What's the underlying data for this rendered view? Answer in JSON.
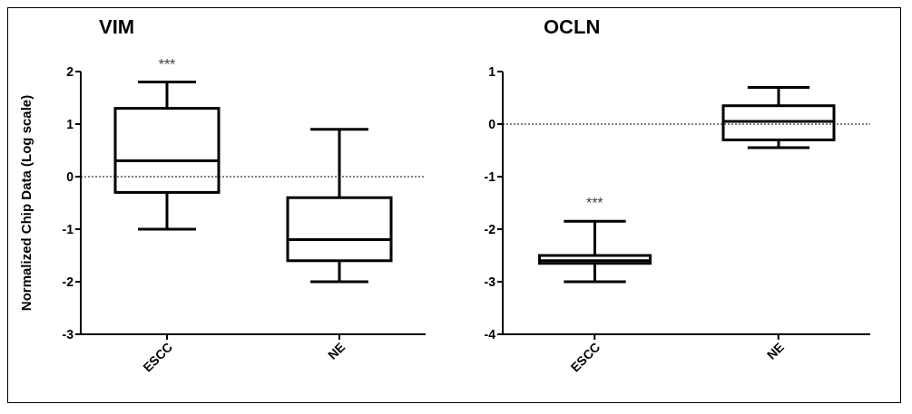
{
  "chart_data": [
    {
      "type": "box",
      "title": "VIM",
      "ylabel": "Normalized Chip Data (Log scale)",
      "categories": [
        "ESCC",
        "NE"
      ],
      "boxes": [
        {
          "low": -1,
          "q1": -0.3,
          "median": 0.3,
          "q3": 1.3,
          "high": 1.8
        },
        {
          "low": -2,
          "q1": -1.6,
          "median": -1.2,
          "q3": -0.4,
          "high": 0.9
        }
      ],
      "ylim": [
        -3,
        2
      ],
      "yticks": [
        -3,
        -2,
        -1,
        0,
        1,
        2
      ],
      "grid": false,
      "legend": false,
      "ref_lines": [
        {
          "axis": "y",
          "value": 0,
          "line_style": "dotted"
        }
      ],
      "annotations": [
        "***"
      ]
    },
    {
      "type": "box",
      "title": "OCLN",
      "categories": [
        "ESCC",
        "NE"
      ],
      "boxes": [
        {
          "low": -3,
          "q1": -2.65,
          "median": -2.6,
          "q3": -2.5,
          "high": -1.85
        },
        {
          "low": -0.45,
          "q1": -0.3,
          "median": 0.05,
          "q3": 0.35,
          "high": 0.7
        }
      ],
      "ylim": [
        -4,
        1
      ],
      "yticks": [
        -4,
        -3,
        -2,
        -1,
        0,
        1
      ],
      "grid": false,
      "legend": false,
      "ref_lines": [
        {
          "axis": "y",
          "value": 0,
          "line_style": "dotted"
        }
      ],
      "annotations": [
        "***"
      ]
    }
  ]
}
